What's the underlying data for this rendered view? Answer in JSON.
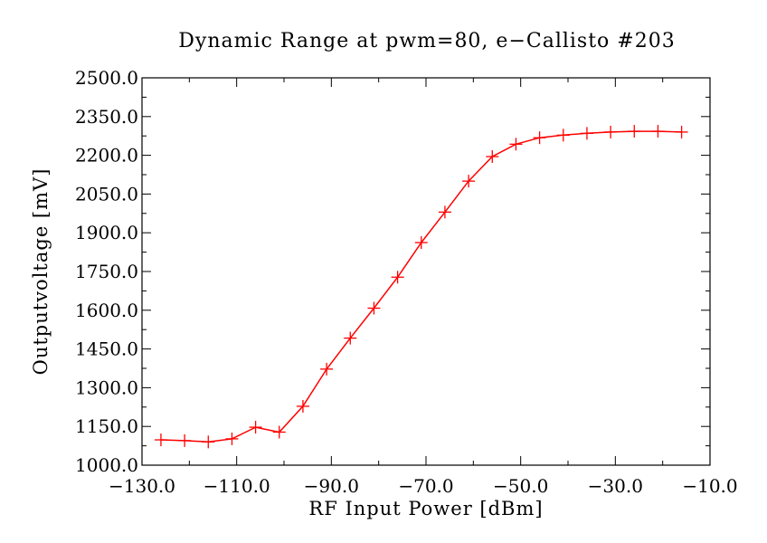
{
  "chart_data": {
    "type": "line",
    "title": "Dynamic Range at pwm=80, e−Callisto #203",
    "xlabel": "RF Input Power [dBm]",
    "ylabel": "Outputvoltage [mV]",
    "xlim": [
      -130,
      -10
    ],
    "ylim": [
      1000,
      2500
    ],
    "grid": false,
    "x_ticks": [
      -130,
      -110,
      -90,
      -70,
      -50,
      -30,
      -10
    ],
    "x_tick_labels": [
      "−130.0",
      "−110.0",
      "−90.0",
      "−70.0",
      "−50.0",
      "−30.0",
      "−10.0"
    ],
    "y_ticks": [
      1000,
      1150,
      1300,
      1450,
      1600,
      1750,
      1900,
      2050,
      2200,
      2350,
      2500
    ],
    "y_tick_labels": [
      "1000.0",
      "1150.0",
      "1300.0",
      "1450.0",
      "1600.0",
      "1750.0",
      "1900.0",
      "2050.0",
      "2200.0",
      "2350.0",
      "2500.0"
    ],
    "series": [
      {
        "name": "Outputvoltage",
        "color": "#ff0000",
        "marker": "plus",
        "x": [
          -126,
          -121,
          -116,
          -111,
          -106,
          -101,
          -96,
          -91,
          -86,
          -81,
          -76,
          -71,
          -66,
          -61,
          -56,
          -51,
          -46,
          -41,
          -36,
          -31,
          -26,
          -21,
          -16
        ],
        "y": [
          1098,
          1095,
          1090,
          1102,
          1147,
          1128,
          1228,
          1372,
          1492,
          1608,
          1728,
          1862,
          1980,
          2100,
          2195,
          2243,
          2268,
          2278,
          2285,
          2290,
          2293,
          2293,
          2290
        ]
      }
    ]
  }
}
